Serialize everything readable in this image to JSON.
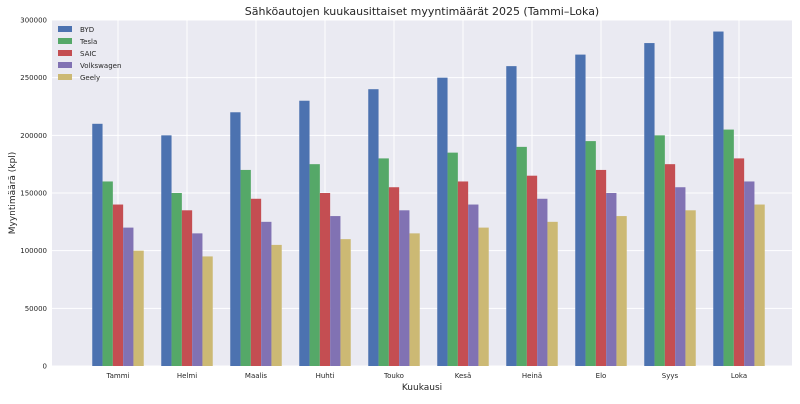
{
  "chart_data": {
    "type": "bar",
    "title": "Sähköautojen kuukausittaiset myyntimäärät 2025 (Tammi–Loka)",
    "xlabel": "Kuukausi",
    "ylabel": "Myyntimäärä (kpl)",
    "ylim": [
      0,
      300000
    ],
    "yticks": [
      0,
      50000,
      100000,
      150000,
      200000,
      250000,
      300000
    ],
    "ytick_labels": [
      "0",
      "50000",
      "100000",
      "150000",
      "200000",
      "250000",
      "300000"
    ],
    "grid": true,
    "legend_position": "top-left",
    "categories": [
      "Tammi",
      "Helmi",
      "Maalis",
      "Huhti",
      "Touko",
      "Kesä",
      "Heinä",
      "Elo",
      "Syys",
      "Loka"
    ],
    "series": [
      {
        "name": "BYD",
        "color": "#4c72b0",
        "values": [
          210000,
          200000,
          220000,
          230000,
          240000,
          250000,
          260000,
          270000,
          280000,
          290000
        ]
      },
      {
        "name": "Tesla",
        "color": "#55a868",
        "values": [
          160000,
          150000,
          170000,
          175000,
          180000,
          185000,
          190000,
          195000,
          200000,
          205000
        ]
      },
      {
        "name": "SAIC",
        "color": "#c44e52",
        "values": [
          140000,
          135000,
          145000,
          150000,
          155000,
          160000,
          165000,
          170000,
          175000,
          180000
        ]
      },
      {
        "name": "Volkswagen",
        "color": "#8172b3",
        "values": [
          120000,
          115000,
          125000,
          130000,
          135000,
          140000,
          145000,
          150000,
          155000,
          160000
        ]
      },
      {
        "name": "Geely",
        "color": "#ccb974",
        "values": [
          100000,
          95000,
          105000,
          110000,
          115000,
          120000,
          125000,
          130000,
          135000,
          140000
        ]
      }
    ]
  }
}
